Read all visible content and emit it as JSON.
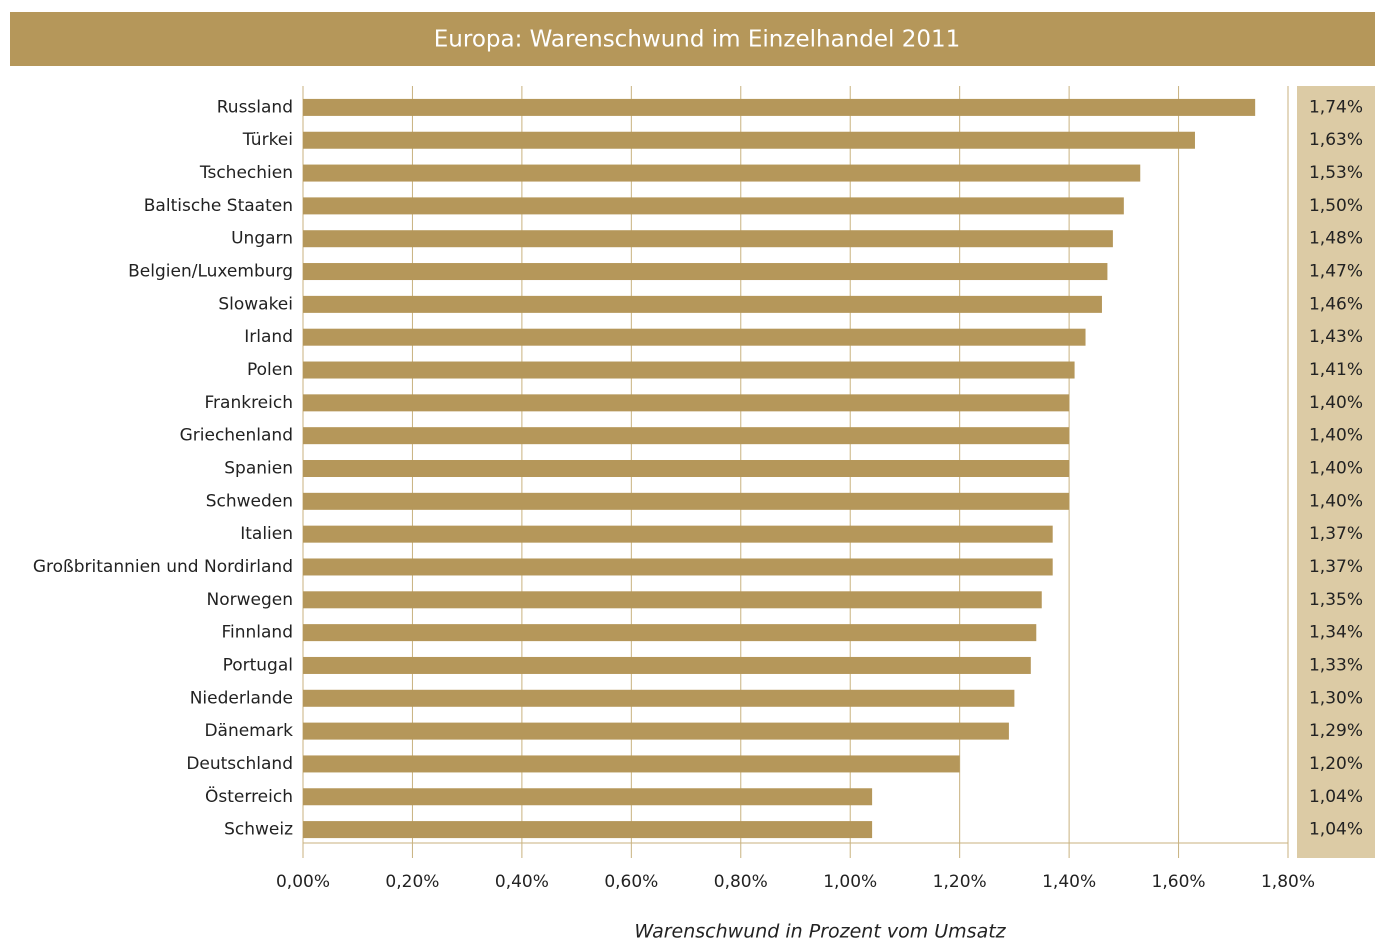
{
  "chart_data": {
    "type": "barh",
    "title": "Europa: Warenschwund im Einzelhandel 2011",
    "x_label": "Warenschwund in Prozent vom Umsatz",
    "color": "#b5975a",
    "categories": [
      "Russland",
      "Türkei",
      "Tschechien",
      "Baltische Staaten",
      "Ungarn",
      "Belgien/Luxemburg",
      "Slowakei",
      "Irland",
      "Polen",
      "Frankreich",
      "Griechenland",
      "Spanien",
      "Schweden",
      "Italien",
      "Großbritannien und Nordirland",
      "Norwegen",
      "Finnland",
      "Portugal",
      "Niederlande",
      "Dänemark",
      "Deutschland",
      "Österreich",
      "Schweiz"
    ],
    "values": [
      1.74,
      1.63,
      1.53,
      1.5,
      1.48,
      1.47,
      1.46,
      1.43,
      1.41,
      1.4,
      1.4,
      1.4,
      1.4,
      1.37,
      1.37,
      1.35,
      1.34,
      1.33,
      1.3,
      1.29,
      1.2,
      1.04,
      1.04
    ],
    "value_labels": [
      "1,74%",
      "1,63%",
      "1,53%",
      "1,50%",
      "1,48%",
      "1,47%",
      "1,46%",
      "1,43%",
      "1,41%",
      "1,40%",
      "1,40%",
      "1,40%",
      "1,40%",
      "1,37%",
      "1,37%",
      "1,35%",
      "1,34%",
      "1,33%",
      "1,30%",
      "1,29%",
      "1,20%",
      "1,04%",
      "1,04%"
    ],
    "xlim": [
      0,
      1.8
    ],
    "xticks": [
      {
        "value": 0,
        "label": "0,00%"
      },
      {
        "value": 0.2,
        "label": "0,20%"
      },
      {
        "value": 0.4,
        "label": "0,40%"
      },
      {
        "value": 0.6,
        "label": "0,60%"
      },
      {
        "value": 0.8,
        "label": "0,80%"
      },
      {
        "value": 1.0,
        "label": "1,00%"
      },
      {
        "value": 1.2,
        "label": "1,20%"
      },
      {
        "value": 1.4,
        "label": "1,40%"
      },
      {
        "value": 1.6,
        "label": "1,60%"
      },
      {
        "value": 1.8,
        "label": "1,80%"
      }
    ],
    "grid": true
  }
}
